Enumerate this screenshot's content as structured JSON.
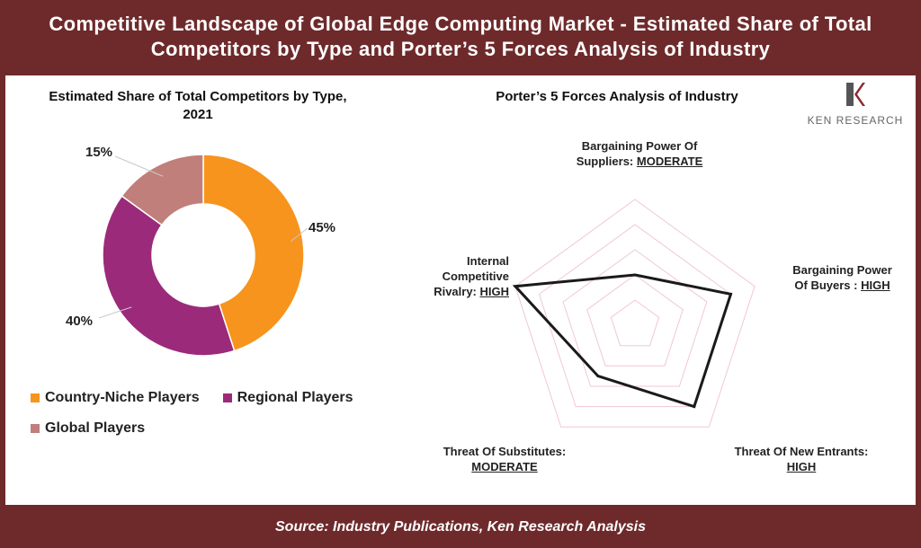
{
  "header": {
    "title": "Competitive Landscape of Global Edge Computing Market - Estimated Share of Total Competitors by Type and Porter’s 5 Forces Analysis of Industry"
  },
  "footer": {
    "source": "Source: Industry Publications, Ken Research Analysis"
  },
  "logo": {
    "text": "KEN RESEARCH"
  },
  "chart_data": [
    {
      "type": "pie",
      "title": "Estimated Share of Total Competitors by Type, 2021",
      "donut": true,
      "categories": [
        "Country-Niche Players",
        "Regional Players",
        "Global Players"
      ],
      "values": [
        45,
        40,
        15
      ],
      "labels": [
        "45%",
        "40%",
        "15%"
      ],
      "colors": [
        "#f7941d",
        "#9b2a7b",
        "#c07f7a"
      ],
      "legend_position": "bottom"
    },
    {
      "type": "radar",
      "title": "Porter’s 5 Forces Analysis of Industry",
      "axes": [
        {
          "name": "Bargaining Power Of Suppliers:",
          "level": "MODERATE",
          "value": 2
        },
        {
          "name": "Bargaining Power Of Buyers :",
          "level": "HIGH",
          "value": 4
        },
        {
          "name": "Threat Of New Entrants:",
          "level": "HIGH",
          "value": 4
        },
        {
          "name": "Threat Of Substitutes:",
          "level": "MODERATE",
          "value": 2.5
        },
        {
          "name": "Internal Competitive Rivalry:",
          "level": "HIGH",
          "value": 5
        }
      ],
      "range": [
        0,
        5
      ],
      "grid_levels": 5,
      "grid_color": "#f0c8cf",
      "line_color": "#1a1a1a"
    }
  ]
}
